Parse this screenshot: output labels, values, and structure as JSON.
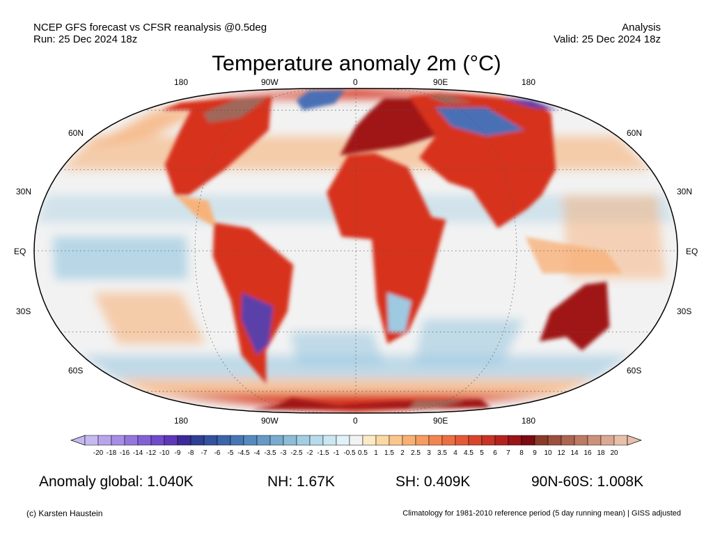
{
  "header": {
    "line1_left": "NCEP GFS forecast vs CFSR reanalysis @0.5deg",
    "line2_left": "Run: 25 Dec 2024 18z",
    "line1_right": "Analysis",
    "line2_right": "Valid: 25 Dec 2024 18z"
  },
  "title": "Temperature anomaly 2m (°C)",
  "map": {
    "projection": "robinson",
    "lon_labels_top": [
      "180",
      "90W",
      "0",
      "90E",
      "180"
    ],
    "lon_labels_bottom": [
      "180",
      "90W",
      "0",
      "90E",
      "180"
    ],
    "lat_labels_left": [
      "60N",
      "30N",
      "EQ",
      "30S",
      "60S"
    ],
    "lat_labels_right": [
      "60N",
      "30N",
      "EQ",
      "30S",
      "60S"
    ],
    "colors": {
      "ocean_neutral": "#f2f2f2",
      "warm": "#d7301f",
      "very_warm": "#a01414",
      "extreme_warm": "#a0685a",
      "mild_warm": "#f7b27a",
      "cool": "#9ecae1",
      "cold": "#4a6fb5",
      "very_cold": "#5a3fa8"
    }
  },
  "colorbar": {
    "labels": [
      "-20",
      "-18",
      "-16",
      "-14",
      "-12",
      "-10",
      "-9",
      "-8",
      "-7",
      "-6",
      "-5",
      "-4.5",
      "-4",
      "-3.5",
      "-3",
      "-2.5",
      "-2",
      "-1.5",
      "-1",
      "-0.5",
      "0.5",
      "1",
      "1.5",
      "2",
      "2.5",
      "3",
      "3.5",
      "4",
      "4.5",
      "5",
      "6",
      "7",
      "8",
      "9",
      "10",
      "12",
      "14",
      "16",
      "18",
      "20"
    ],
    "colors": [
      "#c6b9f0",
      "#b7a4ec",
      "#a58ee5",
      "#9477de",
      "#8361d5",
      "#714bc9",
      "#5f38b8",
      "#3c2a9a",
      "#2e3f96",
      "#33539f",
      "#3b64aa",
      "#4876b5",
      "#568abf",
      "#669ac6",
      "#78abcf",
      "#8cbcd8",
      "#a2cde2",
      "#b7dbea",
      "#cce7f2",
      "#e1f1f8",
      "#f2f2f2",
      "#fde9c4",
      "#fcd9a2",
      "#fbc68a",
      "#f9b173",
      "#f69c60",
      "#f2854f",
      "#ec6f42",
      "#e45a37",
      "#d8452d",
      "#c83326",
      "#b4221f",
      "#9a1418",
      "#7c0a12",
      "#8a3a28",
      "#9b4f3c",
      "#ad6450",
      "#bd7a64",
      "#cc917a",
      "#dba892",
      "#e8c0aa"
    ]
  },
  "stats": {
    "global": "Anomaly global: 1.040K",
    "nh": "NH: 1.67K",
    "sh": "SH: 0.409K",
    "polar": "90N-60S: 1.008K"
  },
  "footer": {
    "credit": "(c) Karsten Haustein",
    "note": "Climatology for 1981-2010 reference period (5 day running mean) | GISS adjusted"
  }
}
